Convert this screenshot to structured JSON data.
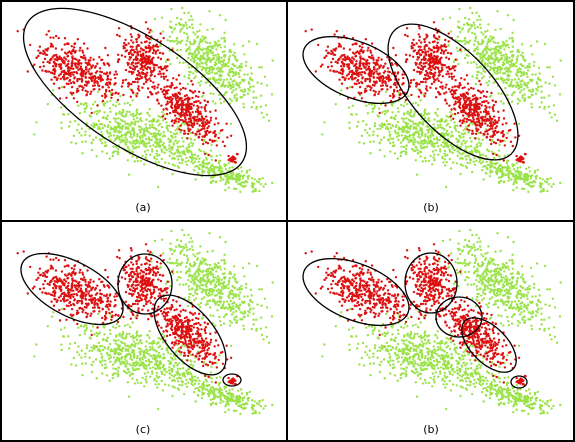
{
  "panels": [
    {
      "label": "(a)"
    },
    {
      "label": "(b)"
    },
    {
      "label": "(c)"
    },
    {
      "label": "(b)"
    }
  ]
}
